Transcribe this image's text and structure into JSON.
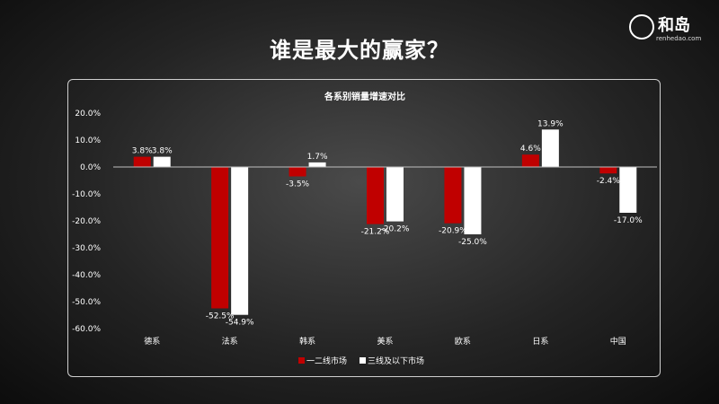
{
  "page": {
    "title": "谁是最大的赢家？"
  },
  "logo": {
    "text": "和岛",
    "url": "renhedao.com"
  },
  "colors": {
    "series1": "#c00000",
    "series2": "#ffffff",
    "axis": "#bfbfbf"
  },
  "chart_data": {
    "type": "bar",
    "title": "各系别销量增速对比",
    "categories": [
      "德系",
      "法系",
      "韩系",
      "美系",
      "欧系",
      "日系",
      "中国"
    ],
    "series": [
      {
        "name": "一二线市场",
        "values": [
          3.8,
          -52.5,
          -3.5,
          -21.2,
          -20.9,
          4.6,
          -2.4
        ]
      },
      {
        "name": "三线及以下市场",
        "values": [
          3.8,
          -54.9,
          1.7,
          -20.2,
          -25.0,
          13.9,
          -17.0
        ]
      }
    ],
    "ylim": [
      -60,
      20
    ],
    "yticks": [
      20,
      10,
      0,
      -10,
      -20,
      -30,
      -40,
      -50,
      -60
    ],
    "value_format": "percent_1dp",
    "legend_position": "bottom",
    "grid": false
  }
}
